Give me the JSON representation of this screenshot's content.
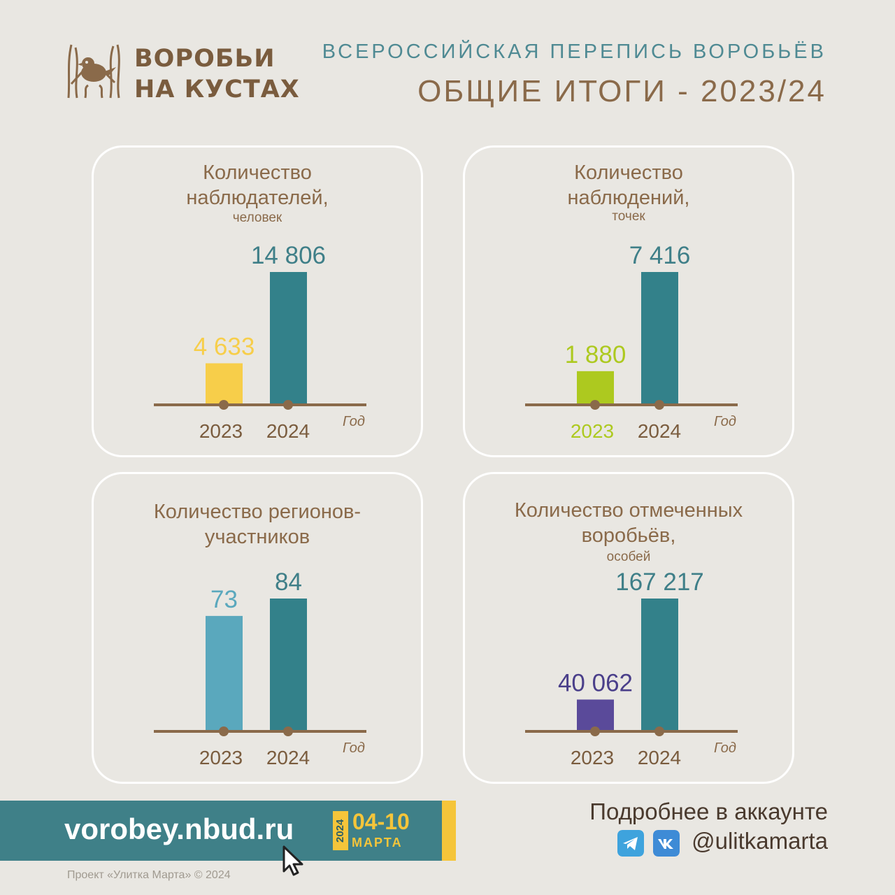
{
  "header": {
    "logo_line1": "ВОРОБЬИ",
    "logo_line2": "НА КУСТАХ",
    "subtitle": "ВСЕРОССИЙСКАЯ ПЕРЕПИСЬ ВОРОБЬЁВ",
    "title": "ОБЩИЕ ИТОГИ - 2023/24"
  },
  "chart_data": [
    {
      "type": "bar",
      "title": "Количество наблюдателей,",
      "unit": "человек",
      "xlabel": "Год",
      "categories": [
        "2023",
        "2024"
      ],
      "values": [
        4633,
        14806
      ],
      "value_labels": [
        "4 633",
        "14 806"
      ],
      "colors": [
        "#f7ce4a",
        "#33818a"
      ],
      "label_colors": [
        "#f7ce4a",
        "#3f7f88"
      ],
      "category_colors": [
        "#7a5c3e",
        "#7a5c3e"
      ]
    },
    {
      "type": "bar",
      "title": "Количество наблюдений,",
      "unit": "точек",
      "xlabel": "Год",
      "categories": [
        "2023",
        "2024"
      ],
      "values": [
        1880,
        7416
      ],
      "value_labels": [
        "1 880",
        "7 416"
      ],
      "colors": [
        "#adc91f",
        "#33818a"
      ],
      "label_colors": [
        "#adc91f",
        "#3f7f88"
      ],
      "category_colors": [
        "#adc91f",
        "#7a5c3e"
      ]
    },
    {
      "type": "bar",
      "title": "Количество регионов-участников",
      "unit": "",
      "xlabel": "Год",
      "categories": [
        "2023",
        "2024"
      ],
      "values": [
        73,
        84
      ],
      "value_labels": [
        "73",
        "84"
      ],
      "colors": [
        "#5aa8bd",
        "#33818a"
      ],
      "label_colors": [
        "#5aa8bd",
        "#3f7f88"
      ],
      "category_colors": [
        "#7a5c3e",
        "#7a5c3e"
      ]
    },
    {
      "type": "bar",
      "title": "Количество отмеченных воробьёв,",
      "unit": "особей",
      "xlabel": "Год",
      "categories": [
        "2023",
        "2024"
      ],
      "values": [
        40062,
        167217
      ],
      "value_labels": [
        "40 062",
        "167 217"
      ],
      "colors": [
        "#5a4a9a",
        "#33818a"
      ],
      "label_colors": [
        "#4a3f8a",
        "#3f7f88"
      ],
      "category_colors": [
        "#7a5c3e",
        "#7a5c3e"
      ]
    }
  ],
  "footer": {
    "site": "vorobey.nbud.ru",
    "year": "2024",
    "dates": "04-10",
    "month": "МАРТА",
    "copyright": "Проект «Улитка Марта» © 2024",
    "more": "Подробнее в аккаунте",
    "handle": "@ulitkamarta",
    "colors": {
      "banner": "#3f8088",
      "accent": "#f5c53a",
      "telegram": "#3ea3dd",
      "vk": "#3e8bd6"
    }
  }
}
